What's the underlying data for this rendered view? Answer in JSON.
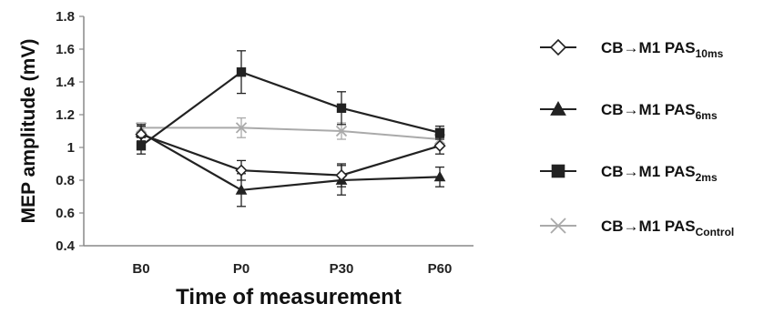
{
  "chart_data": {
    "type": "line",
    "title": "",
    "xlabel": "Time of measurement",
    "ylabel": "MEP amplitude (mV)",
    "categories": [
      "B0",
      "P0",
      "P30",
      "P60"
    ],
    "ylim": [
      0.4,
      1.8
    ],
    "yticks": [
      "0.4",
      "0.6",
      "0.8",
      "1",
      "1.2",
      "1.4",
      "1.6",
      "1.8"
    ],
    "grid": false,
    "legend_position": "right",
    "series": [
      {
        "name": "PAS10ms",
        "legend_main": "CB→M1 PAS",
        "legend_sub": "10ms",
        "marker": "diamond",
        "color": "#222222",
        "values": [
          1.08,
          0.86,
          0.83,
          1.01
        ],
        "errors": [
          0.05,
          0.06,
          0.07,
          0.05
        ]
      },
      {
        "name": "PAS6ms",
        "legend_main": "CB→M1 PAS",
        "legend_sub": "6ms",
        "marker": "triangle",
        "color": "#222222",
        "values": [
          1.09,
          0.74,
          0.8,
          0.82
        ],
        "errors": [
          0.05,
          0.1,
          0.09,
          0.06
        ]
      },
      {
        "name": "PAS2ms",
        "legend_main": "CB→M1 PAS",
        "legend_sub": "2ms",
        "marker": "square",
        "color": "#222222",
        "values": [
          1.01,
          1.46,
          1.24,
          1.09
        ],
        "errors": [
          0.05,
          0.13,
          0.1,
          0.04
        ]
      },
      {
        "name": "PASControl",
        "legend_main": "CB→M1 PAS",
        "legend_sub": "Control",
        "marker": "x",
        "color": "#aaaaaa",
        "values": [
          1.12,
          1.12,
          1.1,
          1.05
        ],
        "errors": [
          0.03,
          0.06,
          0.05,
          0.04
        ]
      }
    ]
  }
}
